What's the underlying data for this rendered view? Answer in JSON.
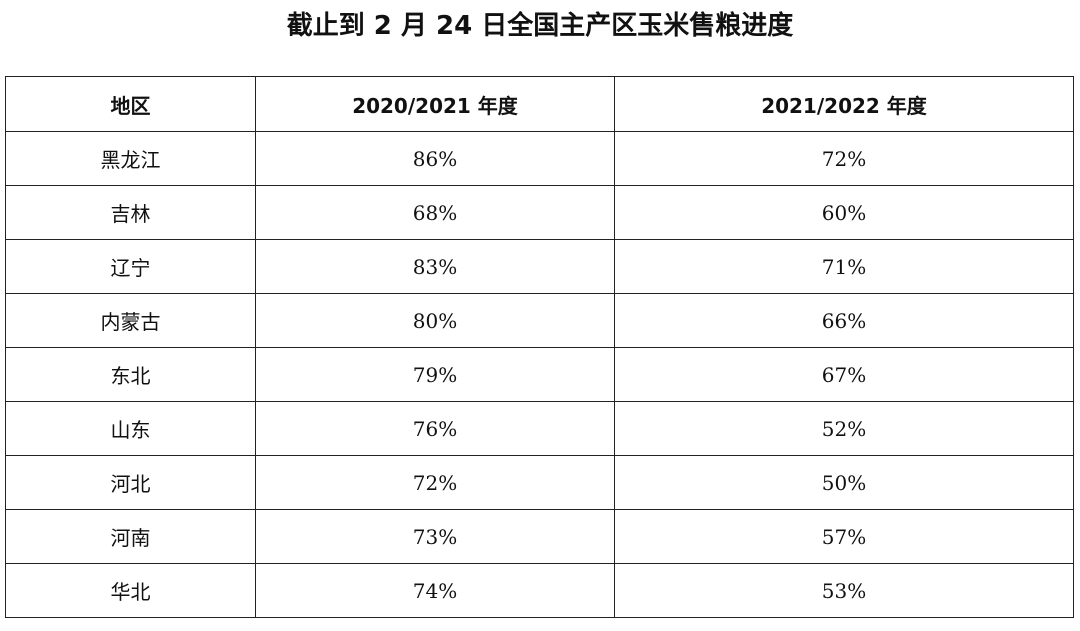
{
  "title": "截止到 2 月 24 日全国主产区玉米售粮进度",
  "table": {
    "headers": [
      "地区",
      "2020/2021 年度",
      "2021/2022 年度"
    ],
    "rows": [
      [
        "黑龙江",
        "86%",
        "72%"
      ],
      [
        "吉林",
        "68%",
        "60%"
      ],
      [
        "辽宁",
        "83%",
        "71%"
      ],
      [
        "内蒙古",
        "80%",
        "66%"
      ],
      [
        "东北",
        "79%",
        "67%"
      ],
      [
        "山东",
        "76%",
        "52%"
      ],
      [
        "河北",
        "72%",
        "50%"
      ],
      [
        "河南",
        "73%",
        "57%"
      ],
      [
        "华北",
        "74%",
        "53%"
      ]
    ]
  },
  "chart_data": {
    "type": "table",
    "title": "截止到 2 月 24 日全国主产区玉米售粮进度",
    "columns": [
      "地区",
      "2020/2021 年度",
      "2021/2022 年度"
    ],
    "categories": [
      "黑龙江",
      "吉林",
      "辽宁",
      "内蒙古",
      "东北",
      "山东",
      "河北",
      "河南",
      "华北"
    ],
    "series": [
      {
        "name": "2020/2021 年度",
        "values": [
          86,
          68,
          83,
          80,
          79,
          76,
          72,
          73,
          74
        ]
      },
      {
        "name": "2021/2022 年度",
        "values": [
          72,
          60,
          71,
          66,
          67,
          52,
          50,
          57,
          53
        ]
      }
    ],
    "unit": "%"
  }
}
